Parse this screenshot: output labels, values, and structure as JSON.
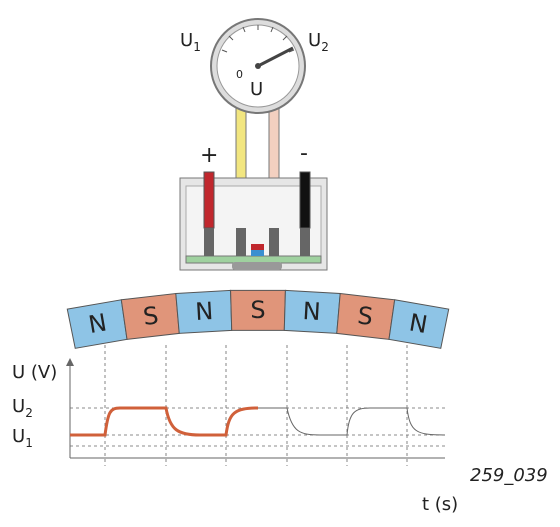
{
  "gauge": {
    "left_label": {
      "base": "U",
      "sub": "1"
    },
    "right_label": {
      "base": "U",
      "sub": "2"
    },
    "zero": "0",
    "unit": "U"
  },
  "electrodes": {
    "plus": "+",
    "minus": "-"
  },
  "magnets": [
    "N",
    "S",
    "N",
    "S",
    "N",
    "S",
    "N"
  ],
  "graph": {
    "y_axis_label": "U (V)",
    "u2_label": {
      "base": "U",
      "sub": "2"
    },
    "u1_label": {
      "base": "U",
      "sub": "1"
    },
    "x_axis_label": "t (s)"
  },
  "figure_id": "259_039"
}
